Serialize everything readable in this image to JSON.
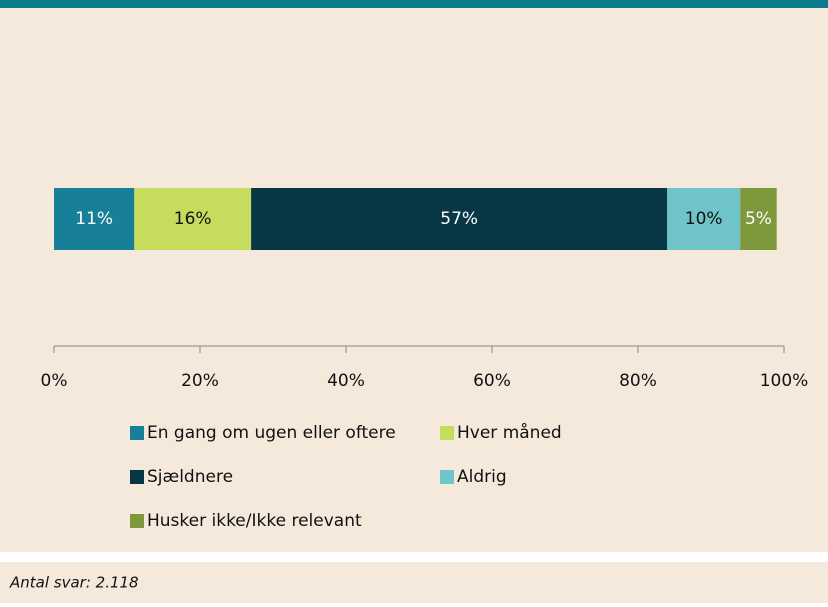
{
  "chart_data": {
    "type": "stacked-bar-horizontal",
    "series": [
      {
        "name": "En gang om ugen eller oftere",
        "color": "#187f98",
        "values": [
          11
        ],
        "value_labels": [
          "11%"
        ]
      },
      {
        "name": "Hver måned",
        "color": "#c6dc5c",
        "values": [
          16
        ],
        "value_labels": [
          "16%"
        ]
      },
      {
        "name": "Sjældnere",
        "color": "#073744",
        "values": [
          57
        ],
        "value_labels": [
          "57%"
        ]
      },
      {
        "name": "Aldrig",
        "color": "#6ec4c8",
        "values": [
          10
        ],
        "value_labels": [
          "10%"
        ]
      },
      {
        "name": "Husker ikke/Ikke relevant",
        "color": "#7e983c",
        "values": [
          5
        ],
        "value_labels": [
          "5%"
        ]
      }
    ],
    "xlim": [
      0,
      100
    ],
    "xticks": [
      {
        "value": 0,
        "label": "0%"
      },
      {
        "value": 20,
        "label": "20%"
      },
      {
        "value": 40,
        "label": "40%"
      },
      {
        "value": 60,
        "label": "60%"
      },
      {
        "value": 80,
        "label": "80%"
      },
      {
        "value": 100,
        "label": "100%"
      }
    ],
    "legend": "bottom",
    "footnote": "Antal svar: 2.118"
  }
}
